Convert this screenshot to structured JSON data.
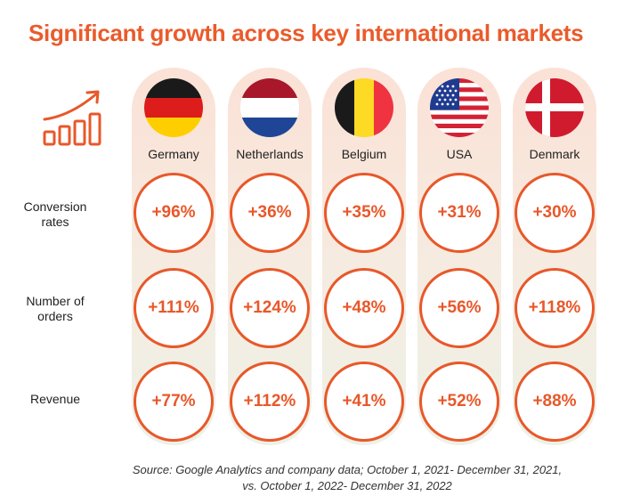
{
  "title": "Significant growth across key international markets",
  "row_labels": {
    "conversion": [
      "Conversion",
      "rates"
    ],
    "orders": [
      "Number of",
      "orders"
    ],
    "revenue": [
      "Revenue"
    ]
  },
  "markets": [
    {
      "country": "Germany",
      "conversion": "+96%",
      "orders": "+111%",
      "revenue": "+77%"
    },
    {
      "country": "Netherlands",
      "conversion": "+36%",
      "orders": "+124%",
      "revenue": "+112%"
    },
    {
      "country": "Belgium",
      "conversion": "+35%",
      "orders": "+48%",
      "revenue": "+41%"
    },
    {
      "country": "USA",
      "conversion": "+31%",
      "orders": "+56%",
      "revenue": "+52%"
    },
    {
      "country": "Denmark",
      "conversion": "+30%",
      "orders": "+118%",
      "revenue": "+88%"
    }
  ],
  "source": [
    "Source: Google Analytics and company data; October 1, 2021- December 31, 2021,",
    "vs. October 1, 2022- December 31, 2022"
  ],
  "colors": {
    "accent": "#e8582a",
    "title": "#ea5b2b"
  },
  "icons": {
    "growth": "growth-chart-icon"
  }
}
